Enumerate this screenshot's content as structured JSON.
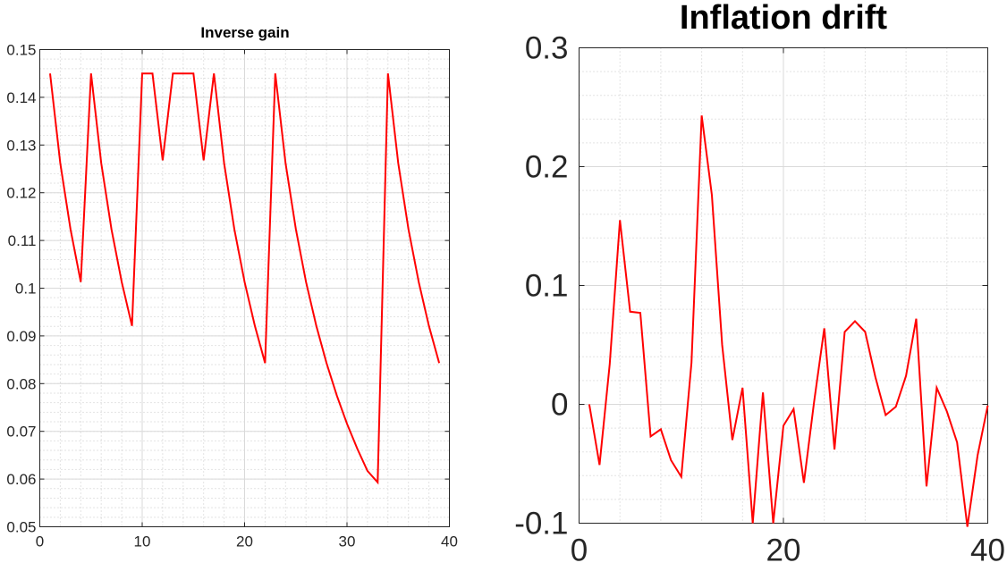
{
  "chart_data": [
    {
      "type": "line",
      "title": "Inverse gain",
      "xlabel": "",
      "ylabel": "",
      "xlim": [
        0,
        40
      ],
      "ylim": [
        0.05,
        0.15
      ],
      "x_ticks": [
        0,
        10,
        20,
        30,
        40
      ],
      "y_ticks": [
        0.05,
        0.06,
        0.07,
        0.08,
        0.09,
        0.1,
        0.11,
        0.12,
        0.13,
        0.14,
        0.15
      ],
      "x_tick_labels": [
        "0",
        "10",
        "20",
        "30",
        "40"
      ],
      "y_tick_labels": [
        "0.05",
        "0.06",
        "0.07",
        "0.08",
        "0.09",
        "0.1",
        "0.11",
        "0.12",
        "0.13",
        "0.14",
        "0.15"
      ],
      "grid": "on",
      "minor_grid": "on",
      "series": [
        {
          "color": "#ff0000",
          "x": [
            1,
            2,
            3,
            4,
            5,
            6,
            7,
            8,
            9,
            10,
            11,
            12,
            13,
            14,
            15,
            16,
            17,
            18,
            19,
            20,
            21,
            22,
            23,
            24,
            25,
            26,
            27,
            28,
            29,
            30,
            31,
            32,
            33,
            34,
            35,
            36,
            37,
            38,
            39
          ],
          "y": [
            0.145,
            0.1262,
            0.1124,
            0.1013,
            0.145,
            0.1262,
            0.1124,
            0.1013,
            0.0921,
            0.145,
            0.145,
            0.1268,
            0.145,
            0.145,
            0.145,
            0.1268,
            0.145,
            0.1262,
            0.1124,
            0.1013,
            0.0921,
            0.0843,
            0.145,
            0.1262,
            0.1124,
            0.1013,
            0.0921,
            0.0843,
            0.0775,
            0.0716,
            0.0664,
            0.0617,
            0.0593,
            0.145,
            0.1262,
            0.1124,
            0.1013,
            0.0921,
            0.0843
          ]
        }
      ]
    },
    {
      "type": "line",
      "title": "Inflation drift",
      "xlabel": "",
      "ylabel": "",
      "xlim": [
        0,
        40
      ],
      "ylim": [
        -0.1,
        0.3
      ],
      "x_ticks": [
        0,
        20,
        40
      ],
      "y_ticks": [
        -0.1,
        0,
        0.1,
        0.2,
        0.3
      ],
      "x_tick_labels": [
        "0",
        "20",
        "40"
      ],
      "y_tick_labels": [
        "-0.1",
        "0",
        "0.1",
        "0.2",
        "0.3"
      ],
      "grid": "on",
      "minor_grid": "on",
      "series": [
        {
          "color": "#ff0000",
          "x": [
            1,
            2,
            3,
            4,
            5,
            6,
            7,
            8,
            9,
            10,
            11,
            12,
            13,
            14,
            15,
            16,
            17,
            18,
            19,
            20,
            21,
            22,
            23,
            24,
            25,
            26,
            27,
            28,
            29,
            30,
            31,
            32,
            33,
            34,
            35,
            36,
            37,
            38,
            39,
            40
          ],
          "y": [
            0,
            -0.051,
            0.034,
            0.155,
            0.078,
            0.077,
            -0.027,
            -0.021,
            -0.047,
            -0.061,
            0.035,
            0.243,
            0.176,
            0.05,
            -0.03,
            0.014,
            -0.1,
            0.01,
            -0.1,
            -0.018,
            -0.004,
            -0.066,
            0.002,
            0.064,
            -0.038,
            0.061,
            0.07,
            0.061,
            0.023,
            -0.009,
            -0.002,
            0.024,
            0.072,
            -0.069,
            0.014,
            -0.006,
            -0.032,
            -0.103,
            -0.043,
            -0.001
          ]
        }
      ]
    }
  ]
}
